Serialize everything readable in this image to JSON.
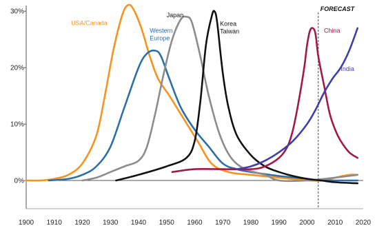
{
  "chart_data": {
    "type": "line",
    "title": "",
    "xlabel": "",
    "ylabel": "",
    "xlim": [
      1900,
      2020
    ],
    "ylim": [
      -0.05,
      0.31
    ],
    "x_ticks": [
      "1900",
      "1910",
      "1920",
      "1930",
      "1940",
      "1950",
      "1960",
      "1970",
      "1980",
      "1990",
      "2000",
      "2010",
      "2020"
    ],
    "y_ticks": [
      {
        "v": 0,
        "label": "0%"
      },
      {
        "v": 0.1,
        "label": "10%"
      },
      {
        "v": 0.2,
        "label": "20%"
      },
      {
        "v": 0.3,
        "label": "30%"
      }
    ],
    "grid": false,
    "forecast": {
      "x": 2004,
      "label": "FORECAST"
    },
    "series": [
      {
        "name": "USA/Canada",
        "color": "#f7931e",
        "x": [
          1900,
          1905,
          1910,
          1915,
          1920,
          1925,
          1928,
          1931,
          1934,
          1936,
          1938,
          1941,
          1944,
          1947,
          1951,
          1956,
          1961,
          1966,
          1972,
          1980,
          1990,
          2000,
          2006,
          2010,
          2015,
          2018
        ],
        "y": [
          0.0,
          0.0,
          0.003,
          0.01,
          0.03,
          0.08,
          0.15,
          0.23,
          0.29,
          0.31,
          0.305,
          0.27,
          0.22,
          0.18,
          0.15,
          0.11,
          0.07,
          0.03,
          0.015,
          0.01,
          0.005,
          0.0,
          0.0,
          0.005,
          0.01,
          0.01
        ]
      },
      {
        "name": "Western Europe",
        "color": "#2e6ea8",
        "x": [
          1908,
          1915,
          1920,
          1925,
          1930,
          1935,
          1940,
          1943,
          1946,
          1948,
          1951,
          1955,
          1960,
          1965,
          1970,
          1975,
          1980,
          1990,
          2000,
          2005,
          2010,
          2015,
          2018
        ],
        "y": [
          0.0,
          0.003,
          0.01,
          0.025,
          0.06,
          0.13,
          0.2,
          0.225,
          0.23,
          0.22,
          0.18,
          0.13,
          0.09,
          0.06,
          0.03,
          0.02,
          0.015,
          0.008,
          0.003,
          0.0,
          0.0,
          0.0,
          0.0
        ]
      },
      {
        "name": "Japan",
        "color": "#8c8c8c",
        "x": [
          1920,
          1925,
          1930,
          1935,
          1940,
          1943,
          1946,
          1949,
          1952,
          1955,
          1957,
          1959,
          1962,
          1965,
          1969,
          1973,
          1978,
          1985,
          1990,
          2000,
          2010,
          2018
        ],
        "y": [
          0.0,
          0.005,
          0.015,
          0.025,
          0.035,
          0.06,
          0.12,
          0.19,
          0.25,
          0.285,
          0.29,
          0.28,
          0.22,
          0.15,
          0.08,
          0.04,
          0.02,
          0.01,
          0.0,
          0.0,
          0.005,
          0.01
        ]
      },
      {
        "name": "Korea Taiwan",
        "color": "#111111",
        "x": [
          1932,
          1940,
          1950,
          1957,
          1960,
          1962,
          1964,
          1966,
          1967,
          1968,
          1970,
          1972,
          1975,
          1980,
          1985,
          1990,
          1995,
          2000,
          2005,
          2010,
          2018
        ],
        "y": [
          0.0,
          0.01,
          0.025,
          0.04,
          0.07,
          0.14,
          0.24,
          0.29,
          0.3,
          0.28,
          0.19,
          0.13,
          0.08,
          0.045,
          0.025,
          0.015,
          0.008,
          0.003,
          0.0,
          -0.003,
          -0.005
        ]
      },
      {
        "name": "China",
        "color": "#a3174a",
        "x": [
          1952,
          1960,
          1970,
          1980,
          1985,
          1990,
          1993,
          1995,
          1997,
          1999,
          2000,
          2001,
          2002,
          2003,
          2004,
          2006,
          2008,
          2010,
          2012,
          2015,
          2018
        ],
        "y": [
          0.015,
          0.02,
          0.02,
          0.02,
          0.025,
          0.04,
          0.06,
          0.09,
          0.14,
          0.2,
          0.24,
          0.265,
          0.27,
          0.26,
          0.22,
          0.17,
          0.12,
          0.09,
          0.07,
          0.05,
          0.04
        ]
      },
      {
        "name": "India",
        "color": "#3f3fa8",
        "x": [
          1975,
          1980,
          1985,
          1990,
          1995,
          2000,
          2003,
          2006,
          2009,
          2012,
          2015,
          2018
        ],
        "y": [
          0.02,
          0.025,
          0.035,
          0.05,
          0.07,
          0.1,
          0.125,
          0.155,
          0.18,
          0.2,
          0.23,
          0.27
        ]
      }
    ],
    "annotations": [
      {
        "text": [
          "USA/Canada"
        ],
        "color": "#f7931e",
        "x": 1916,
        "y": 0.275
      },
      {
        "text": [
          "Western",
          "Europe"
        ],
        "color": "#2e6ea8",
        "x": 1944,
        "y": 0.262
      },
      {
        "text": [
          "Japan"
        ],
        "color": "#111111",
        "x": 1950,
        "y": 0.289
      },
      {
        "text": [
          "Korea",
          "Taiwan"
        ],
        "color": "#111111",
        "x": 1969,
        "y": 0.274
      },
      {
        "text": [
          "China"
        ],
        "color": "#a3174a",
        "x": 2006,
        "y": 0.262
      },
      {
        "text": [
          "India"
        ],
        "color": "#3f3fa8",
        "x": 2012,
        "y": 0.194
      }
    ]
  }
}
